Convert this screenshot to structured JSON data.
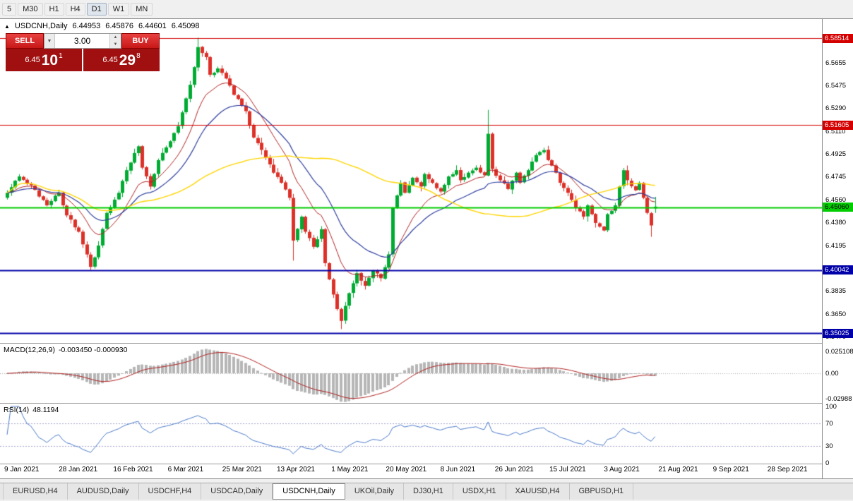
{
  "toolbar": {
    "timeframes": [
      "5",
      "M30",
      "H1",
      "H4",
      "D1",
      "W1",
      "MN"
    ],
    "active_timeframe": "D1"
  },
  "quote_readout": {
    "collapse_icon": "▲",
    "symbol": "USDCNH,Daily",
    "open": "6.44953",
    "high": "6.45876",
    "low": "6.44601",
    "close": "6.45098"
  },
  "trade_panel": {
    "sell_label": "SELL",
    "buy_label": "BUY",
    "volume": "3.00",
    "icons": {
      "dropdown": "▼",
      "up": "▲",
      "down": "▼"
    },
    "sell_price": {
      "prefix": "6.45",
      "pips": "10",
      "fraction": "1"
    },
    "buy_price": {
      "prefix": "6.45",
      "pips": "29",
      "fraction": "8"
    }
  },
  "chart_data": {
    "type": "candlestick",
    "symbol": "USDCNH",
    "timeframe": "Daily",
    "current_bar": {
      "open": 6.44953,
      "high": 6.45876,
      "low": 6.44601,
      "close": 6.45098
    },
    "candle_up_color": "#00ab32",
    "candle_down_color": "#dc3028",
    "bars_count": 164,
    "y_axis_ticks": [
      6.5655,
      6.5475,
      6.529,
      6.511,
      6.4925,
      6.4745,
      6.456,
      6.438,
      6.4195,
      6.4015,
      6.3835,
      6.365,
      6.347
    ],
    "x_axis_labels": [
      "9 Jan 2021",
      "28 Jan 2021",
      "16 Feb 2021",
      "6 Mar 2021",
      "25 Mar 2021",
      "13 Apr 2021",
      "1 May 2021",
      "20 May 2021",
      "8 Jun 2021",
      "26 Jun 2021",
      "15 Jul 2021",
      "3 Aug 2021",
      "21 Aug 2021",
      "9 Sep 2021",
      "28 Sep 2021"
    ],
    "horizontal_lines": [
      {
        "price": 6.58514,
        "label": "6.58514",
        "color": "#d40000",
        "text_color": "#ffffff",
        "width": 1
      },
      {
        "price": 6.51605,
        "label": "6.51605",
        "color": "#d40000",
        "text_color": "#ffffff",
        "width": 1
      },
      {
        "price": 6.4506,
        "label": "6.45060",
        "color": "#00cc00",
        "text_color": "#000000",
        "width": 2
      },
      {
        "price": 6.40042,
        "label": "6.40042",
        "color": "#0000a8",
        "text_color": "#ffffff",
        "width": 2
      },
      {
        "price": 6.35025,
        "label": "6.35025",
        "color": "#0000a8",
        "text_color": "#ffffff",
        "width": 2
      }
    ],
    "moving_averages": [
      {
        "type": "ema",
        "period": 12,
        "color": "#b02020",
        "width": 1
      },
      {
        "type": "ema",
        "period": 24,
        "color": "#2f3f9f",
        "width": 1.2
      },
      {
        "type": "sma",
        "period": 60,
        "color": "#ffd500",
        "width": 1.4
      }
    ],
    "close_anchors": [
      [
        0,
        6.462
      ],
      [
        3,
        6.475
      ],
      [
        6,
        6.468
      ],
      [
        10,
        6.452
      ],
      [
        13,
        6.462
      ],
      [
        15,
        6.444
      ],
      [
        18,
        6.431
      ],
      [
        21,
        6.403
      ],
      [
        23,
        6.42
      ],
      [
        25,
        6.446
      ],
      [
        28,
        6.462
      ],
      [
        30,
        6.48
      ],
      [
        33,
        6.499
      ],
      [
        34,
        6.482
      ],
      [
        36,
        6.467
      ],
      [
        38,
        6.488
      ],
      [
        41,
        6.503
      ],
      [
        43,
        6.515
      ],
      [
        46,
        6.548
      ],
      [
        48,
        6.578
      ],
      [
        50,
        6.57
      ],
      [
        51,
        6.556
      ],
      [
        53,
        6.561
      ],
      [
        55,
        6.553
      ],
      [
        57,
        6.54
      ],
      [
        60,
        6.527
      ],
      [
        62,
        6.506
      ],
      [
        65,
        6.49
      ],
      [
        67,
        6.478
      ],
      [
        69,
        6.47
      ],
      [
        71,
        6.458
      ],
      [
        72,
        6.424
      ],
      [
        74,
        6.443
      ],
      [
        75,
        6.431
      ],
      [
        77,
        6.419
      ],
      [
        79,
        6.433
      ],
      [
        80,
        6.406
      ],
      [
        82,
        6.381
      ],
      [
        84,
        6.36
      ],
      [
        85,
        6.372
      ],
      [
        87,
        6.39
      ],
      [
        88,
        6.398
      ],
      [
        90,
        6.388
      ],
      [
        92,
        6.4
      ],
      [
        94,
        6.394
      ],
      [
        96,
        6.413
      ],
      [
        97,
        6.45
      ],
      [
        99,
        6.47
      ],
      [
        100,
        6.462
      ],
      [
        102,
        6.474
      ],
      [
        104,
        6.467
      ],
      [
        105,
        6.477
      ],
      [
        107,
        6.47
      ],
      [
        109,
        6.463
      ],
      [
        111,
        6.475
      ],
      [
        113,
        6.48
      ],
      [
        114,
        6.472
      ],
      [
        116,
        6.478
      ],
      [
        118,
        6.482
      ],
      [
        120,
        6.476
      ],
      [
        121,
        6.509
      ],
      [
        122,
        6.481
      ],
      [
        124,
        6.472
      ],
      [
        126,
        6.465
      ],
      [
        128,
        6.478
      ],
      [
        129,
        6.47
      ],
      [
        131,
        6.48
      ],
      [
        133,
        6.492
      ],
      [
        135,
        6.496
      ],
      [
        136,
        6.488
      ],
      [
        138,
        6.478
      ],
      [
        139,
        6.47
      ],
      [
        141,
        6.462
      ],
      [
        143,
        6.45
      ],
      [
        145,
        6.443
      ],
      [
        146,
        6.452
      ],
      [
        148,
        6.438
      ],
      [
        150,
        6.432
      ],
      [
        151,
        6.445
      ],
      [
        153,
        6.452
      ],
      [
        155,
        6.48
      ],
      [
        156,
        6.472
      ],
      [
        158,
        6.464
      ],
      [
        159,
        6.47
      ],
      [
        160,
        6.458
      ],
      [
        161,
        6.446
      ],
      [
        162,
        6.436
      ],
      [
        163,
        6.451
      ]
    ],
    "spike_highs": [
      [
        48,
        6.5855
      ],
      [
        121,
        6.528
      ]
    ],
    "spike_lows": [
      [
        21,
        6.4005
      ],
      [
        72,
        6.408
      ],
      [
        84,
        6.3535
      ],
      [
        162,
        6.427
      ]
    ],
    "indicators": [
      {
        "name": "MACD",
        "label": "MACD(12,26,9)",
        "values_text": "-0.003450 -0.000930",
        "value": -0.00345,
        "signal": -0.00093,
        "histogram_color": "#b6b6b6",
        "signal_color": "#b02020",
        "scale": [
          {
            "label": "0.025108",
            "value": 0.025108
          },
          {
            "label": "0.00",
            "value": 0
          },
          {
            "label": "-0.02988",
            "value": -0.02988
          }
        ]
      },
      {
        "name": "RSI",
        "label": "RSI(14)",
        "value_text": "48.1194",
        "value": 48.1194,
        "line_color": "#4878c8",
        "levels": [
          70,
          30
        ],
        "scale": [
          {
            "label": "100",
            "value": 100
          },
          {
            "label": "70",
            "value": 70
          },
          {
            "label": "30",
            "value": 30
          },
          {
            "label": "0",
            "value": 0
          }
        ]
      }
    ]
  },
  "tabs": {
    "items": [
      "EURUSD,H4",
      "AUDUSD,Daily",
      "USDCHF,H4",
      "USDCAD,Daily",
      "USDCNH,Daily",
      "UKOil,Daily",
      "DJ30,H1",
      "USDX,H1",
      "XAUUSD,H4",
      "GBPUSD,H1"
    ],
    "active": "USDCNH,Daily"
  }
}
